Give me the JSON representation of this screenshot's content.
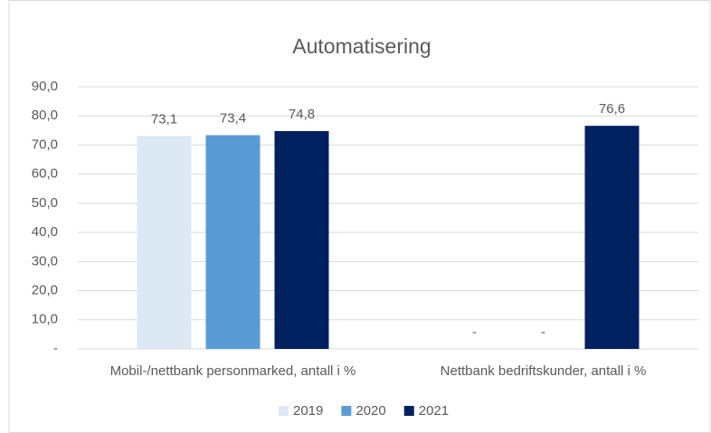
{
  "chart_data": {
    "type": "bar",
    "title": "Automatisering",
    "categories": [
      "Mobil-/nettbank personmarked, antall i %",
      "Nettbank bedriftskunder, antall i %"
    ],
    "series": [
      {
        "name": "2019",
        "color": "#dde8f5",
        "values": [
          73.1,
          0
        ],
        "value_labels": [
          "73,1",
          "-"
        ]
      },
      {
        "name": "2020",
        "color": "#5b9bd5",
        "values": [
          73.4,
          0
        ],
        "value_labels": [
          "73,4",
          "-"
        ]
      },
      {
        "name": "2021",
        "color": "#002060",
        "values": [
          74.8,
          76.6
        ],
        "value_labels": [
          "74,8",
          "76,6"
        ]
      }
    ],
    "ylim": [
      0,
      90
    ],
    "yticks": [
      {
        "value": 0,
        "label": "-"
      },
      {
        "value": 10,
        "label": "10,0"
      },
      {
        "value": 20,
        "label": "20,0"
      },
      {
        "value": 30,
        "label": "30,0"
      },
      {
        "value": 40,
        "label": "40,0"
      },
      {
        "value": 50,
        "label": "50,0"
      },
      {
        "value": 60,
        "label": "60,0"
      },
      {
        "value": 70,
        "label": "70,0"
      },
      {
        "value": 80,
        "label": "80,0"
      },
      {
        "value": 90,
        "label": "90,0"
      }
    ],
    "grid": true,
    "legend": "bottom"
  }
}
